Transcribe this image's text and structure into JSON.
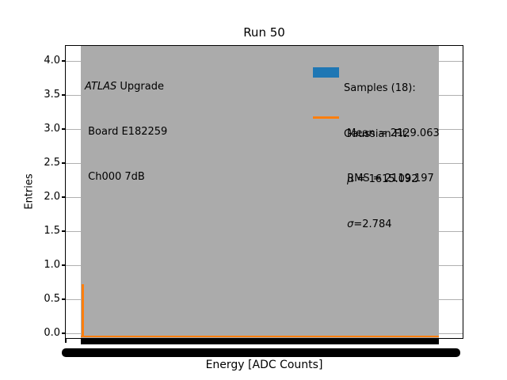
{
  "colors": {
    "hist_fill": "#ababab",
    "grid": "#b0b0b0",
    "series_blue": "#1f77b4",
    "series_orange": "#ff7f0e",
    "ink": "#000000",
    "paper": "#ffffff"
  },
  "axis": {
    "title": "Run 50",
    "xlabel": "Energy [ADC Counts]",
    "ylabel": "Entries",
    "yticks": [
      "4.0",
      "3.5",
      "3.0",
      "2.5",
      "2.0",
      "1.5",
      "1.0",
      "0.5",
      "0.0"
    ],
    "x_ticklabels_note": "many overlapping tick labels rendered as a solid black band"
  },
  "annotation": {
    "experiment_italic": "ATLAS",
    "experiment_rest": " Upgrade",
    "board": " Board E182259",
    "channel": " Ch000 7dB"
  },
  "legend": {
    "samples": {
      "title": "Samples (18):",
      "mean_line": " Mean = 2129.063",
      "rms_line": " RMS = 2119.197"
    },
    "fit": {
      "title": "Gaussian Fit:",
      "mu_symbol": " μ",
      "mu_rest": " = 1615.092",
      "sigma_symbol": " σ",
      "sigma_rest": "=2.784"
    }
  },
  "chart_data": {
    "type": "histogram",
    "title": "Run 50",
    "xlabel": "Energy [ADC Counts]",
    "ylabel": "Entries",
    "yticks": [
      0.0,
      0.5,
      1.0,
      1.5,
      2.0,
      2.5,
      3.0,
      3.5,
      4.0
    ],
    "ylim_shown": [
      0.0,
      4.0
    ],
    "grid": true,
    "legend_position": "upper right, frameless",
    "x_tick_labels": "unreadable: dense overlapping labels form a solid black band under the axis",
    "series": [
      {
        "name": "Samples (18): Mean = 2129.063, RMS = 2119.197",
        "type": "bar",
        "color": "#ababab",
        "n_samples": 18,
        "mean": 2129.063,
        "rms": 2119.197,
        "description": "gray filled histogram block spanning ~4% to ~94% of the x-axis width; bar height exceeds the visible y-range (clipped at plot top)"
      },
      {
        "name": "Gaussian Fit: μ = 1615.092, σ = 2.784",
        "type": "line",
        "color": "#ff7f0e",
        "mu": 1615.092,
        "sigma": 2.784,
        "peak_height_entries": 0.72,
        "peak_x_fraction_of_axis": 0.04,
        "description": "orange curve ~0 along the baseline with one narrow spike (peak ≈ 0.72 entries) near the left edge of the data range"
      }
    ]
  }
}
